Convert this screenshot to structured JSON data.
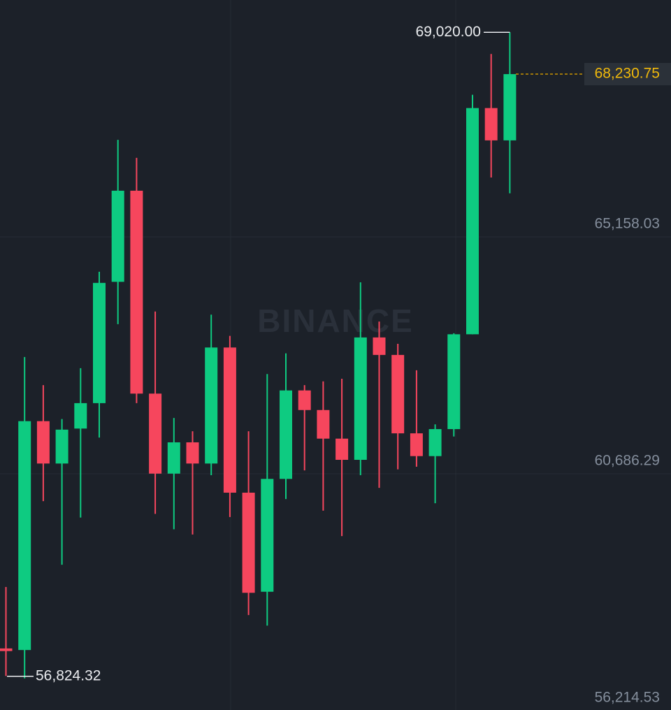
{
  "chart_data": {
    "type": "candlestick",
    "watermark": "BINANCE",
    "open": [
      57390,
      57360,
      61680,
      60880,
      61540,
      62020,
      64310,
      66030,
      62200,
      60690,
      61280,
      60880,
      63070,
      60330,
      58460,
      60590,
      62260,
      61890,
      61350,
      60950,
      63260,
      62930,
      61450,
      61020,
      61530,
      63320,
      67590,
      66980
    ],
    "high": [
      58550,
      62890,
      62360,
      61720,
      62680,
      64500,
      66990,
      66650,
      63750,
      61740,
      61490,
      63690,
      63290,
      61490,
      62570,
      62960,
      62360,
      62430,
      62480,
      64300,
      63560,
      63140,
      62640,
      61620,
      63340,
      67840,
      68610,
      69020
    ],
    "low": [
      56870,
      56824.32,
      60170,
      58970,
      59860,
      61370,
      63510,
      62020,
      59930,
      59640,
      59540,
      60660,
      59870,
      58020,
      57820,
      60210,
      60750,
      59990,
      59510,
      60660,
      60420,
      60770,
      60820,
      60130,
      61390,
      63320,
      66280,
      65980
    ],
    "close": [
      57340,
      61680,
      60880,
      61520,
      62020,
      64290,
      66030,
      62200,
      60690,
      61280,
      60880,
      63070,
      60330,
      58440,
      60590,
      62260,
      61890,
      61350,
      60950,
      63260,
      62930,
      61450,
      61020,
      61530,
      63320,
      67590,
      66980,
      68230.75
    ],
    "colors": {
      "up": "#0ecb81",
      "down": "#f6465d"
    },
    "ylim": [
      56214.53,
      69629.77
    ],
    "yticks": [
      {
        "value": 65158.03,
        "label": "65,158.03"
      },
      {
        "value": 60686.29,
        "label": "60,686.29"
      },
      {
        "value": 56214.53,
        "label": "56,214.53"
      }
    ],
    "grid": true,
    "last_price": {
      "value": 68230.75,
      "label": "68,230.75"
    },
    "high_marker": {
      "value": 69020,
      "label": "69,020.00"
    },
    "low_marker": {
      "value": 56824.32,
      "label": "56,824.32"
    }
  }
}
